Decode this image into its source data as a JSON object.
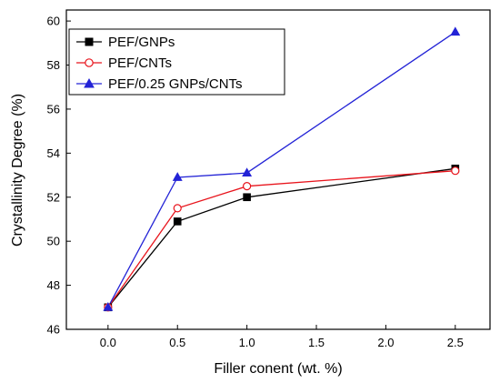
{
  "chart_data": {
    "type": "line",
    "title": "",
    "xlabel": "Filler conent (wt. %)",
    "ylabel": "Crystallinity Degree (%)",
    "xlim": [
      -0.3,
      2.75
    ],
    "ylim": [
      46,
      60.5
    ],
    "xticks": [
      0.0,
      0.5,
      1.0,
      1.5,
      2.0,
      2.5
    ],
    "xtick_labels": [
      "0.0",
      "0.5",
      "1.0",
      "1.5",
      "2.0",
      "2.5"
    ],
    "yticks": [
      46,
      48,
      50,
      52,
      54,
      56,
      58,
      60
    ],
    "ytick_labels": [
      "46",
      "48",
      "50",
      "52",
      "54",
      "56",
      "58",
      "60"
    ],
    "grid": false,
    "legend_position": "top-left",
    "series": [
      {
        "name": "PEF/GNPs",
        "color": "#000000",
        "marker": "square",
        "x": [
          0.0,
          0.5,
          1.0,
          2.5
        ],
        "y": [
          47.0,
          50.9,
          52.0,
          53.3
        ]
      },
      {
        "name": "PEF/CNTs",
        "color": "#e8141c",
        "marker": "circle",
        "x": [
          0.0,
          0.5,
          1.0,
          2.5
        ],
        "y": [
          47.0,
          51.5,
          52.5,
          53.2
        ]
      },
      {
        "name": "PEF/0.25 GNPs/CNTs",
        "color": "#2323d6",
        "marker": "triangle",
        "x": [
          0.0,
          0.5,
          1.0,
          2.5
        ],
        "y": [
          47.0,
          52.9,
          53.1,
          59.5
        ]
      }
    ]
  }
}
